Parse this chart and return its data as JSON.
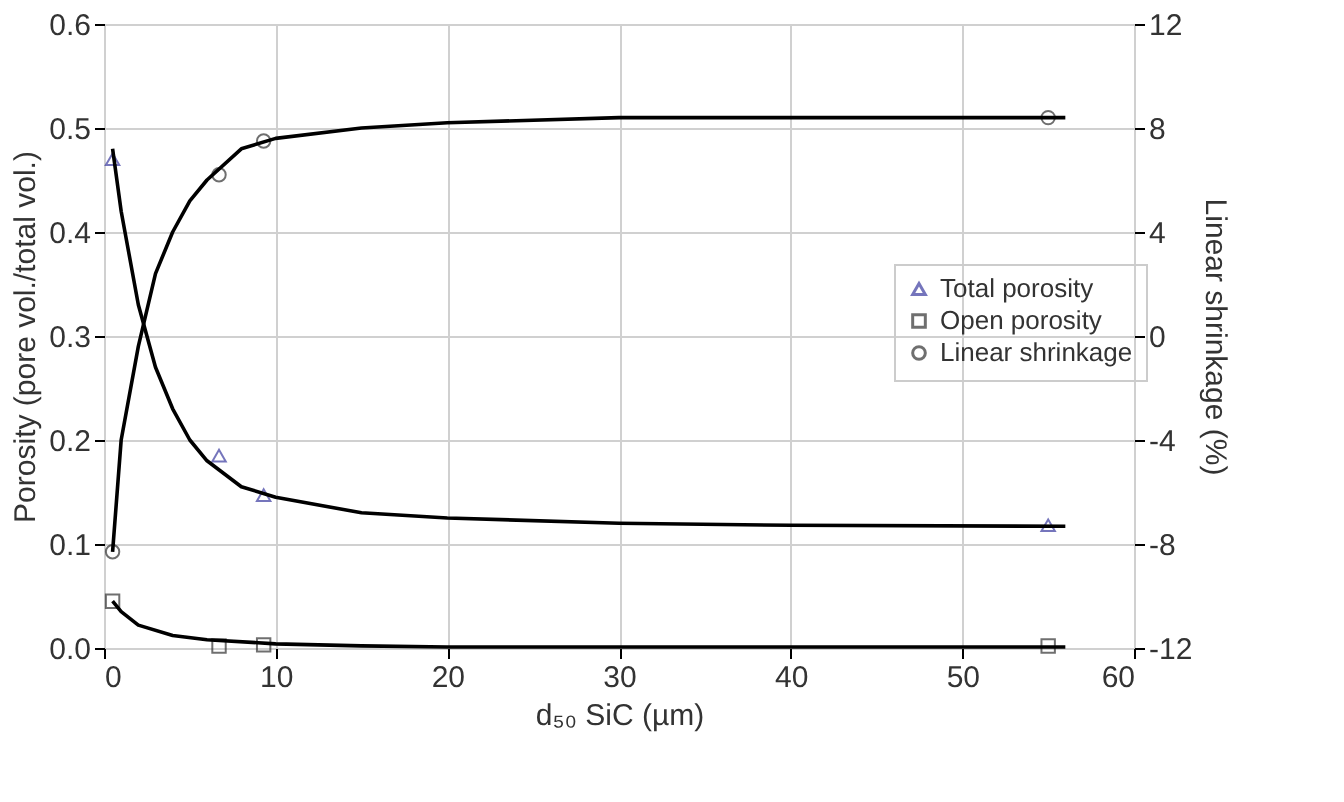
{
  "chart_data": {
    "type": "scatter",
    "xlabel": "d₅₀ SiC (µm)",
    "ylabel": "Porosity (pore vol./total vol.)",
    "y2label": "Linear shrinkage (%)",
    "x": [
      0.5,
      6.7,
      9.3,
      55
    ],
    "xlim": [
      0,
      60
    ],
    "xticks": [
      0,
      10,
      20,
      30,
      40,
      50,
      60
    ],
    "ylim": [
      0,
      0.6
    ],
    "yticks": [
      {
        "value": 0,
        "label": "0.0"
      },
      0.1,
      0.2,
      0.3,
      0.4,
      0.5,
      0.6
    ],
    "y2lim": [
      -12,
      12
    ],
    "y2ticks": [
      -12,
      -8,
      -4,
      0,
      4,
      8,
      12
    ],
    "grid": true,
    "legend": "right",
    "series": [
      {
        "name": "Total porosity",
        "marker": "triangle",
        "color": "#3c3ca0",
        "values": [
          0.47,
          0.185,
          0.147,
          0.118
        ]
      },
      {
        "name": "Open porosity",
        "marker": "square",
        "color": "#333333",
        "values": [
          0.045,
          0.002,
          0.003,
          0.002
        ]
      },
      {
        "name": "Linear shrinkage",
        "marker": "circle",
        "color": "#333333",
        "axis": "y2",
        "values": [
          -8.3,
          6.2,
          7.5,
          8.4
        ]
      },
      {
        "type": "line",
        "marker": "none",
        "color": "#000000",
        "x": [
          0.5,
          1,
          2,
          3,
          4,
          5,
          6,
          8,
          10,
          15,
          20,
          30,
          40,
          56
        ],
        "values": [
          0.48,
          0.42,
          0.33,
          0.27,
          0.23,
          0.2,
          0.18,
          0.155,
          0.145,
          0.13,
          0.125,
          0.12,
          0.118,
          0.117
        ]
      },
      {
        "type": "line",
        "marker": "none",
        "color": "#000000",
        "x": [
          0.5,
          1,
          2,
          4,
          6,
          10,
          15,
          20,
          56
        ],
        "values": [
          0.045,
          0.035,
          0.022,
          0.012,
          0.008,
          0.004,
          0.002,
          0.001,
          0.001
        ]
      },
      {
        "type": "line",
        "marker": "none",
        "color": "#000000",
        "axis": "y2",
        "x": [
          0.5,
          1,
          2,
          3,
          4,
          5,
          6,
          8,
          10,
          15,
          20,
          30,
          56
        ],
        "values": [
          -8.3,
          -4,
          -0.4,
          2.4,
          4,
          5.2,
          6,
          7.2,
          7.6,
          8,
          8.2,
          8.4,
          8.4
        ]
      }
    ]
  }
}
